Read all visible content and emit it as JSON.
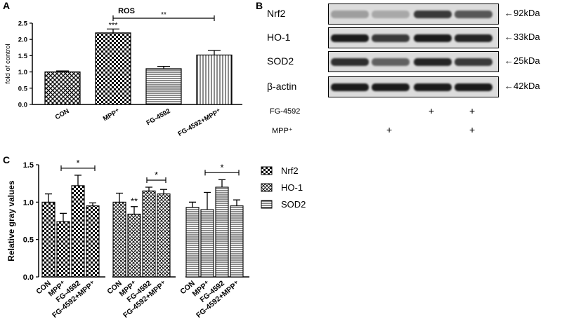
{
  "panels": {
    "A": "A",
    "B": "B",
    "C": "C"
  },
  "chart_data": [
    {
      "panel": "A",
      "type": "bar",
      "title": "ROS",
      "xlabel": "",
      "ylabel": "fold of control",
      "categories": [
        "CON",
        "MPP⁺",
        "FG-4592",
        "FG-4592+MPP⁺"
      ],
      "values": [
        1.0,
        2.2,
        1.1,
        1.52
      ],
      "errors": [
        0.03,
        0.12,
        0.07,
        0.14
      ],
      "ylim": [
        0,
        2.5
      ],
      "yticks": [
        "0.0",
        "0.5",
        "1.0",
        "1.5",
        "2.0",
        "2.5"
      ],
      "annotations": [
        {
          "text": "***",
          "category": "MPP⁺"
        },
        {
          "text": "**",
          "between": [
            "MPP⁺",
            "FG-4592+MPP⁺"
          ]
        }
      ],
      "grid": false,
      "legend": "none"
    },
    {
      "panel": "C",
      "type": "bar",
      "xlabel": "",
      "ylabel": "Relative gray values",
      "groups": [
        "Nrf2",
        "HO-1",
        "SOD2"
      ],
      "categories": [
        "CON",
        "MPP⁺",
        "FG-4592",
        "FG-4592+MPP⁺"
      ],
      "series": [
        {
          "name": "Nrf2",
          "values": [
            1.0,
            0.74,
            1.22,
            0.95
          ],
          "errors": [
            0.11,
            0.11,
            0.14,
            0.04
          ]
        },
        {
          "name": "HO-1",
          "values": [
            1.0,
            0.84,
            1.15,
            1.11
          ],
          "errors": [
            0.12,
            0.1,
            0.05,
            0.06
          ]
        },
        {
          "name": "SOD2",
          "values": [
            0.93,
            0.9,
            1.2,
            0.95
          ],
          "errors": [
            0.07,
            0.23,
            0.1,
            0.08
          ]
        }
      ],
      "ylim": [
        0,
        1.5
      ],
      "yticks": [
        "0.0",
        "0.5",
        "1.0",
        "1.5"
      ],
      "annotations": [
        {
          "text": "*",
          "group": "Nrf2",
          "between": [
            "MPP⁺",
            "FG-4592+MPP⁺"
          ]
        },
        {
          "text": "**",
          "group": "HO-1",
          "category": "MPP⁺"
        },
        {
          "text": "*",
          "group": "HO-1",
          "between": [
            "FG-4592",
            "FG-4592+MPP⁺"
          ]
        },
        {
          "text": "*",
          "group": "SOD2",
          "between": [
            "MPP⁺",
            "FG-4592+MPP⁺"
          ]
        }
      ],
      "grid": false,
      "legend": "right"
    }
  ],
  "blot": {
    "rows": [
      {
        "name": "Nrf2",
        "size": "92kDa",
        "intensities": [
          0.3,
          0.25,
          0.8,
          0.65
        ]
      },
      {
        "name": "HO-1",
        "size": "33kDa",
        "intensities": [
          0.95,
          0.8,
          0.95,
          0.9
        ]
      },
      {
        "name": "SOD2",
        "size": "25kDa",
        "intensities": [
          0.85,
          0.6,
          0.9,
          0.8
        ]
      },
      {
        "name": "β-actin",
        "size": "42kDa",
        "intensities": [
          0.95,
          0.95,
          0.95,
          0.95
        ]
      }
    ],
    "treatments": [
      {
        "label": "FG-4592",
        "marks": [
          "",
          "",
          "+",
          "+"
        ]
      },
      {
        "label": "MPP⁺",
        "marks": [
          "",
          "+",
          "",
          "+"
        ]
      }
    ],
    "arrow": "←"
  },
  "colors": {
    "bar_fill": "#ffffff",
    "ink": "#000000",
    "blot_bg": "#dcdcdc",
    "band": "#111111"
  }
}
